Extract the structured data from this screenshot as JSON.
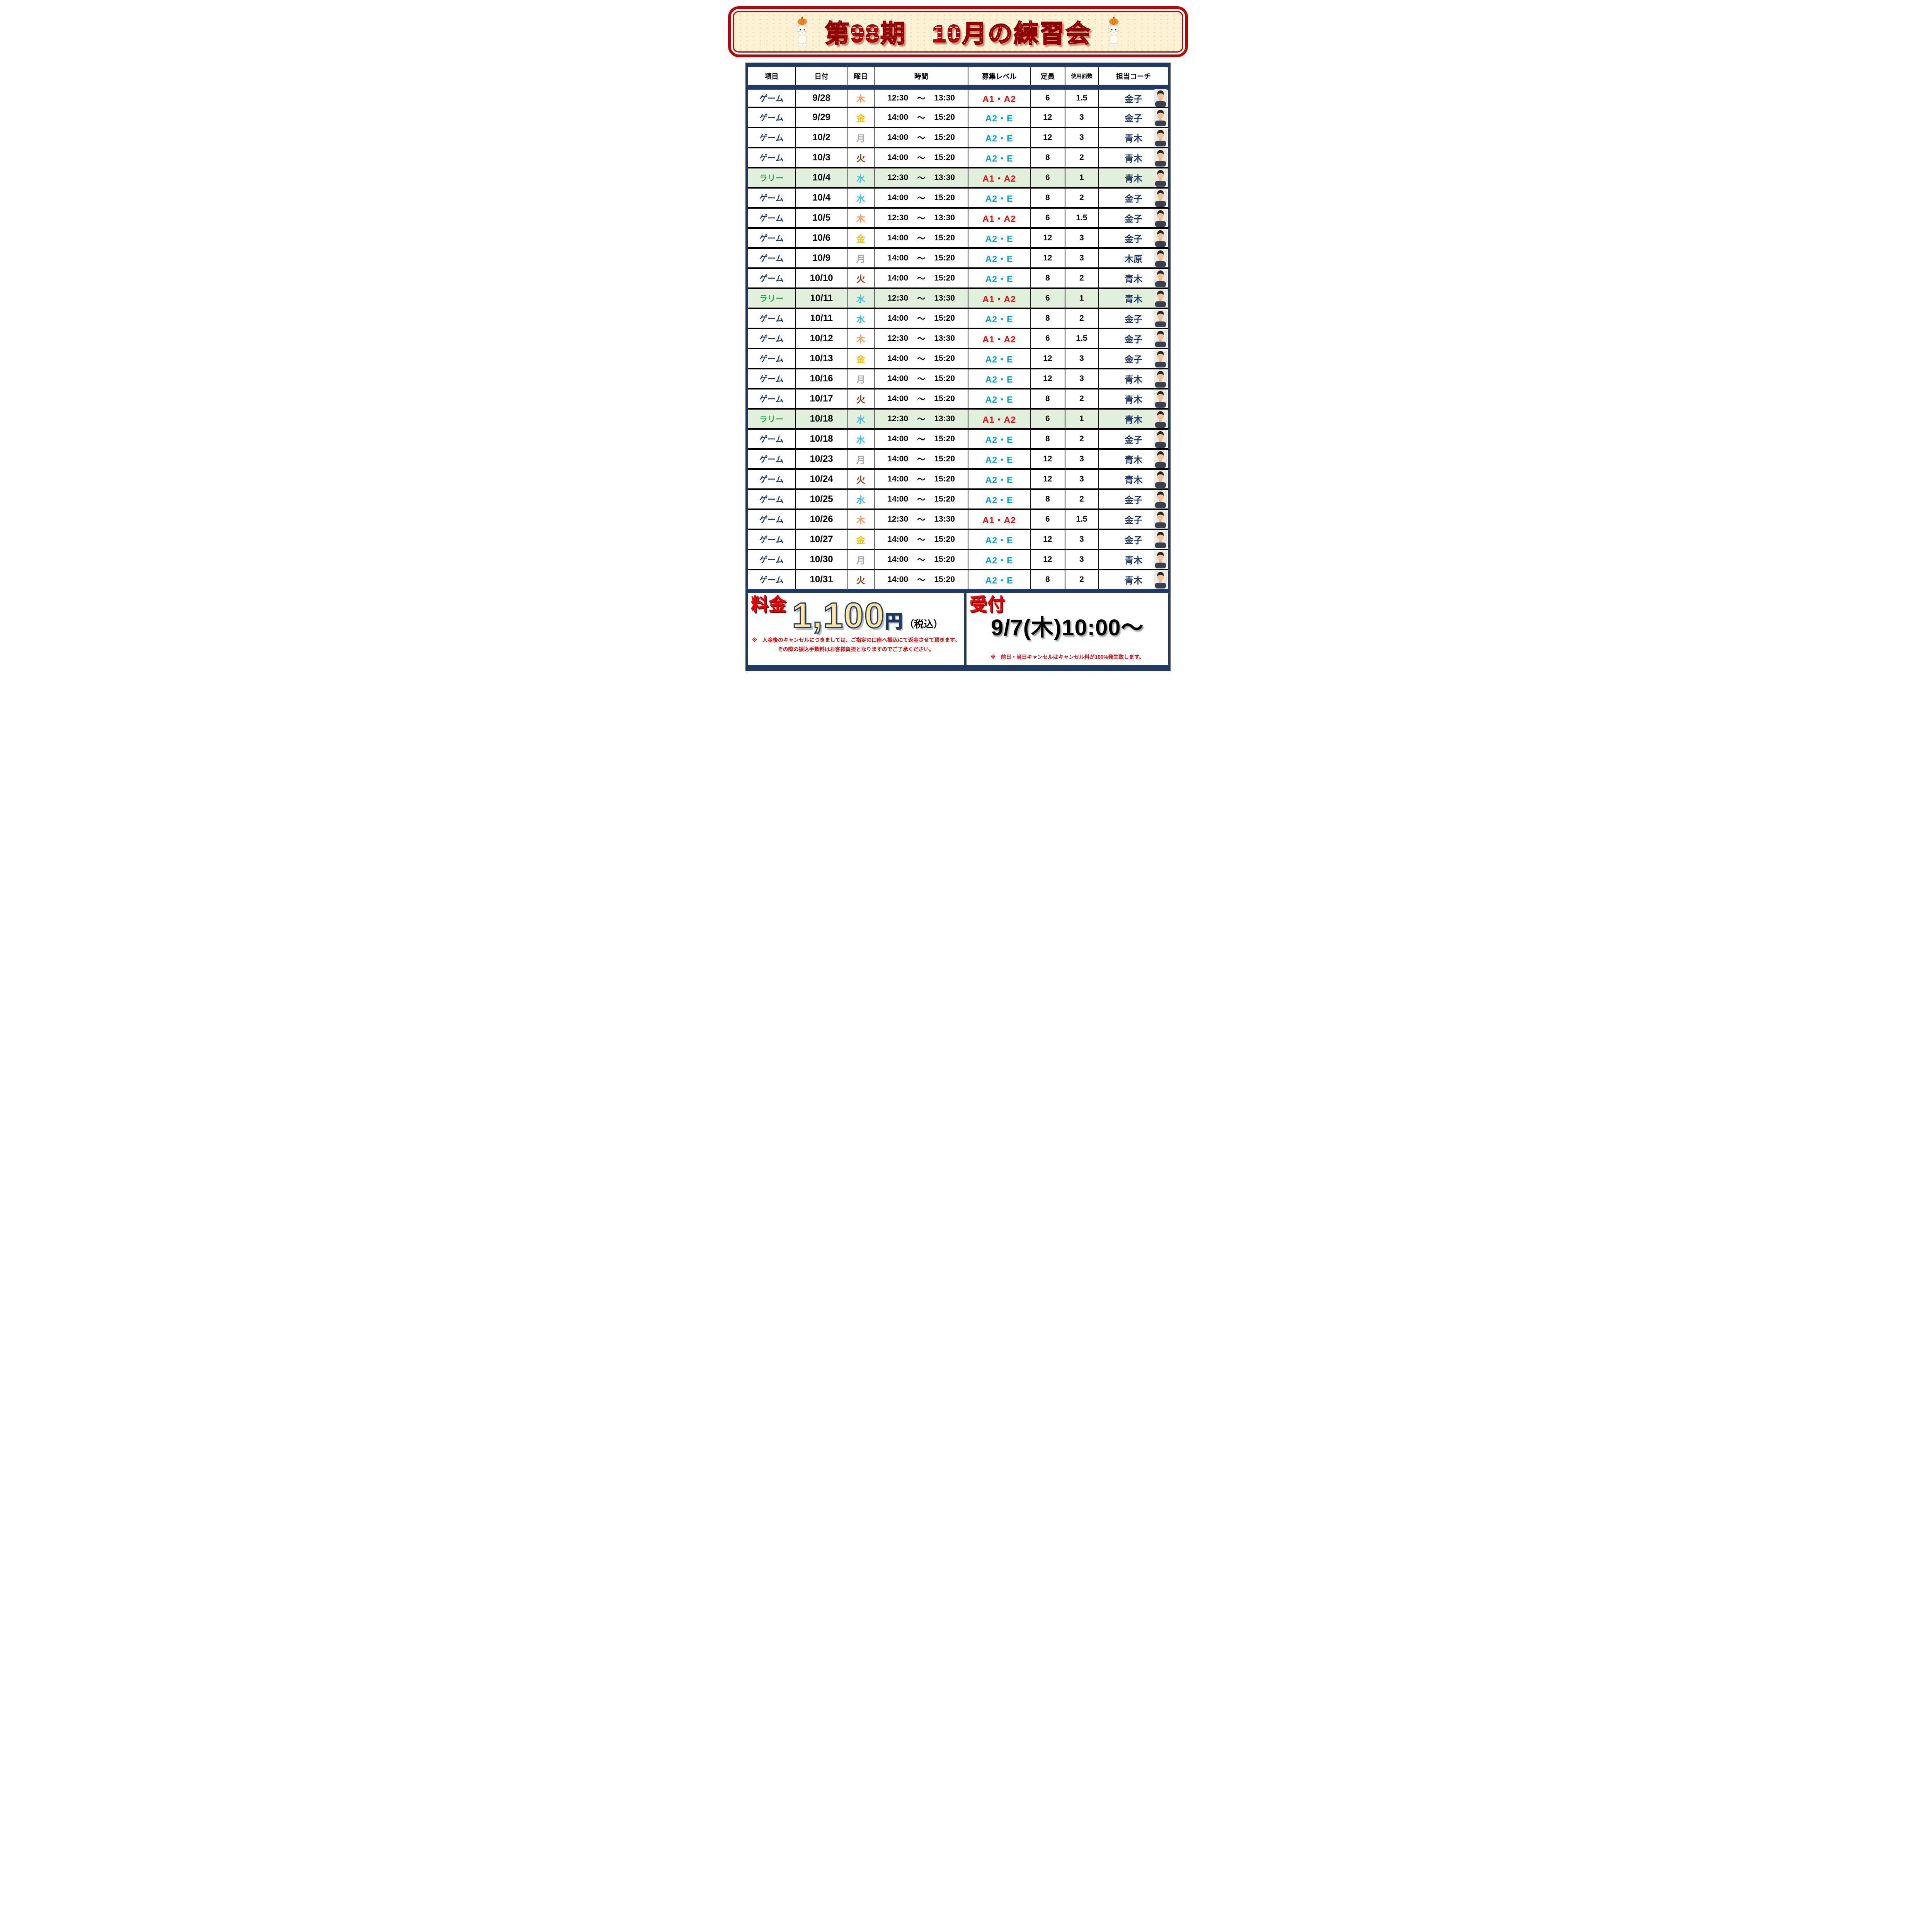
{
  "banner": {
    "title": "第98期　10月の練習会"
  },
  "icons": {
    "mascot": "rabbit-with-pumpkin-hat-mascot",
    "coach_photo": "coach-headshot-photo"
  },
  "table": {
    "headers": [
      "項目",
      "日付",
      "曜日",
      "時間",
      "募集レベル",
      "定員",
      "使用面数",
      "担当コーチ"
    ],
    "tilde": "～",
    "rows": [
      {
        "item": "ゲーム",
        "date": "9/28",
        "day": "木",
        "start": "12:30",
        "end": "13:30",
        "level": "A1・A2",
        "capacity": "6",
        "courts": "1.5",
        "coach": "金子",
        "highlight": false
      },
      {
        "item": "ゲーム",
        "date": "9/29",
        "day": "金",
        "start": "14:00",
        "end": "15:20",
        "level": "A2・E",
        "capacity": "12",
        "courts": "3",
        "coach": "金子",
        "highlight": false
      },
      {
        "item": "ゲーム",
        "date": "10/2",
        "day": "月",
        "start": "14:00",
        "end": "15:20",
        "level": "A2・E",
        "capacity": "12",
        "courts": "3",
        "coach": "青木",
        "highlight": false
      },
      {
        "item": "ゲーム",
        "date": "10/3",
        "day": "火",
        "start": "14:00",
        "end": "15:20",
        "level": "A2・E",
        "capacity": "8",
        "courts": "2",
        "coach": "青木",
        "highlight": false
      },
      {
        "item": "ラリー",
        "date": "10/4",
        "day": "水",
        "start": "12:30",
        "end": "13:30",
        "level": "A1・A2",
        "capacity": "6",
        "courts": "1",
        "coach": "青木",
        "highlight": true
      },
      {
        "item": "ゲーム",
        "date": "10/4",
        "day": "水",
        "start": "14:00",
        "end": "15:20",
        "level": "A2・E",
        "capacity": "8",
        "courts": "2",
        "coach": "金子",
        "highlight": false
      },
      {
        "item": "ゲーム",
        "date": "10/5",
        "day": "木",
        "start": "12:30",
        "end": "13:30",
        "level": "A1・A2",
        "capacity": "6",
        "courts": "1.5",
        "coach": "金子",
        "highlight": false
      },
      {
        "item": "ゲーム",
        "date": "10/6",
        "day": "金",
        "start": "14:00",
        "end": "15:20",
        "level": "A2・E",
        "capacity": "12",
        "courts": "3",
        "coach": "金子",
        "highlight": false
      },
      {
        "item": "ゲーム",
        "date": "10/9",
        "day": "月",
        "start": "14:00",
        "end": "15:20",
        "level": "A2・E",
        "capacity": "12",
        "courts": "3",
        "coach": "木原",
        "highlight": false
      },
      {
        "item": "ゲーム",
        "date": "10/10",
        "day": "火",
        "start": "14:00",
        "end": "15:20",
        "level": "A2・E",
        "capacity": "8",
        "courts": "2",
        "coach": "青木",
        "highlight": false
      },
      {
        "item": "ラリー",
        "date": "10/11",
        "day": "水",
        "start": "12:30",
        "end": "13:30",
        "level": "A1・A2",
        "capacity": "6",
        "courts": "1",
        "coach": "青木",
        "highlight": true
      },
      {
        "item": "ゲーム",
        "date": "10/11",
        "day": "水",
        "start": "14:00",
        "end": "15:20",
        "level": "A2・E",
        "capacity": "8",
        "courts": "2",
        "coach": "金子",
        "highlight": false
      },
      {
        "item": "ゲーム",
        "date": "10/12",
        "day": "木",
        "start": "12:30",
        "end": "13:30",
        "level": "A1・A2",
        "capacity": "6",
        "courts": "1.5",
        "coach": "金子",
        "highlight": false
      },
      {
        "item": "ゲーム",
        "date": "10/13",
        "day": "金",
        "start": "14:00",
        "end": "15:20",
        "level": "A2・E",
        "capacity": "12",
        "courts": "3",
        "coach": "金子",
        "highlight": false
      },
      {
        "item": "ゲーム",
        "date": "10/16",
        "day": "月",
        "start": "14:00",
        "end": "15:20",
        "level": "A2・E",
        "capacity": "12",
        "courts": "3",
        "coach": "青木",
        "highlight": false
      },
      {
        "item": "ゲーム",
        "date": "10/17",
        "day": "火",
        "start": "14:00",
        "end": "15:20",
        "level": "A2・E",
        "capacity": "8",
        "courts": "2",
        "coach": "青木",
        "highlight": false
      },
      {
        "item": "ラリー",
        "date": "10/18",
        "day": "水",
        "start": "12:30",
        "end": "13:30",
        "level": "A1・A2",
        "capacity": "6",
        "courts": "1",
        "coach": "青木",
        "highlight": true
      },
      {
        "item": "ゲーム",
        "date": "10/18",
        "day": "水",
        "start": "14:00",
        "end": "15:20",
        "level": "A2・E",
        "capacity": "8",
        "courts": "2",
        "coach": "金子",
        "highlight": false
      },
      {
        "item": "ゲーム",
        "date": "10/23",
        "day": "月",
        "start": "14:00",
        "end": "15:20",
        "level": "A2・E",
        "capacity": "12",
        "courts": "3",
        "coach": "青木",
        "highlight": false
      },
      {
        "item": "ゲーム",
        "date": "10/24",
        "day": "火",
        "start": "14:00",
        "end": "15:20",
        "level": "A2・E",
        "capacity": "12",
        "courts": "3",
        "coach": "青木",
        "highlight": false
      },
      {
        "item": "ゲーム",
        "date": "10/25",
        "day": "水",
        "start": "14:00",
        "end": "15:20",
        "level": "A2・E",
        "capacity": "8",
        "courts": "2",
        "coach": "金子",
        "highlight": false
      },
      {
        "item": "ゲーム",
        "date": "10/26",
        "day": "木",
        "start": "12:30",
        "end": "13:30",
        "level": "A1・A2",
        "capacity": "6",
        "courts": "1.5",
        "coach": "金子",
        "highlight": false
      },
      {
        "item": "ゲーム",
        "date": "10/27",
        "day": "金",
        "start": "14:00",
        "end": "15:20",
        "level": "A2・E",
        "capacity": "12",
        "courts": "3",
        "coach": "金子",
        "highlight": false
      },
      {
        "item": "ゲーム",
        "date": "10/30",
        "day": "月",
        "start": "14:00",
        "end": "15:20",
        "level": "A2・E",
        "capacity": "12",
        "courts": "3",
        "coach": "青木",
        "highlight": false
      },
      {
        "item": "ゲーム",
        "date": "10/31",
        "day": "火",
        "start": "14:00",
        "end": "15:20",
        "level": "A2・E",
        "capacity": "8",
        "courts": "2",
        "coach": "青木",
        "highlight": false
      }
    ]
  },
  "footer": {
    "fee_label": "料金",
    "fee_amount": "1,100",
    "fee_unit": "円",
    "fee_tax": "（税込）",
    "fee_note1": "※　入金後のキャンセルにつきましては、ご指定の口座へ振込にて返金させて頂きます。",
    "fee_note2": "その際の振込手数料はお客様負担となりますのでご了承ください。",
    "reception_label": "受付",
    "reception_time": "9/7(木)10:00～",
    "reception_note": "※　前日・当日キャンセルはキャンセル料が100%発生致します。"
  },
  "colors": {
    "navy": "#1F3864",
    "banner_red": "#C00000",
    "banner_bg": "#FBF1D5",
    "highlight_green": "#E2EFDA",
    "label_red": "#E60000",
    "fee_amount_fill": "#FFE699",
    "fee_amount_outline": "#1F3864",
    "items": {
      "ゲーム": "#1F3864",
      "ラリー": "#21A94A"
    },
    "levels": {
      "A1・A2": "#FF0000",
      "A2・E": "#00A0E8"
    },
    "days": {
      "月": "#A6A6A6",
      "火": "#8C3A0E",
      "水": "#3FC0F0",
      "木": "#F89B64",
      "金": "#FFC000"
    }
  }
}
